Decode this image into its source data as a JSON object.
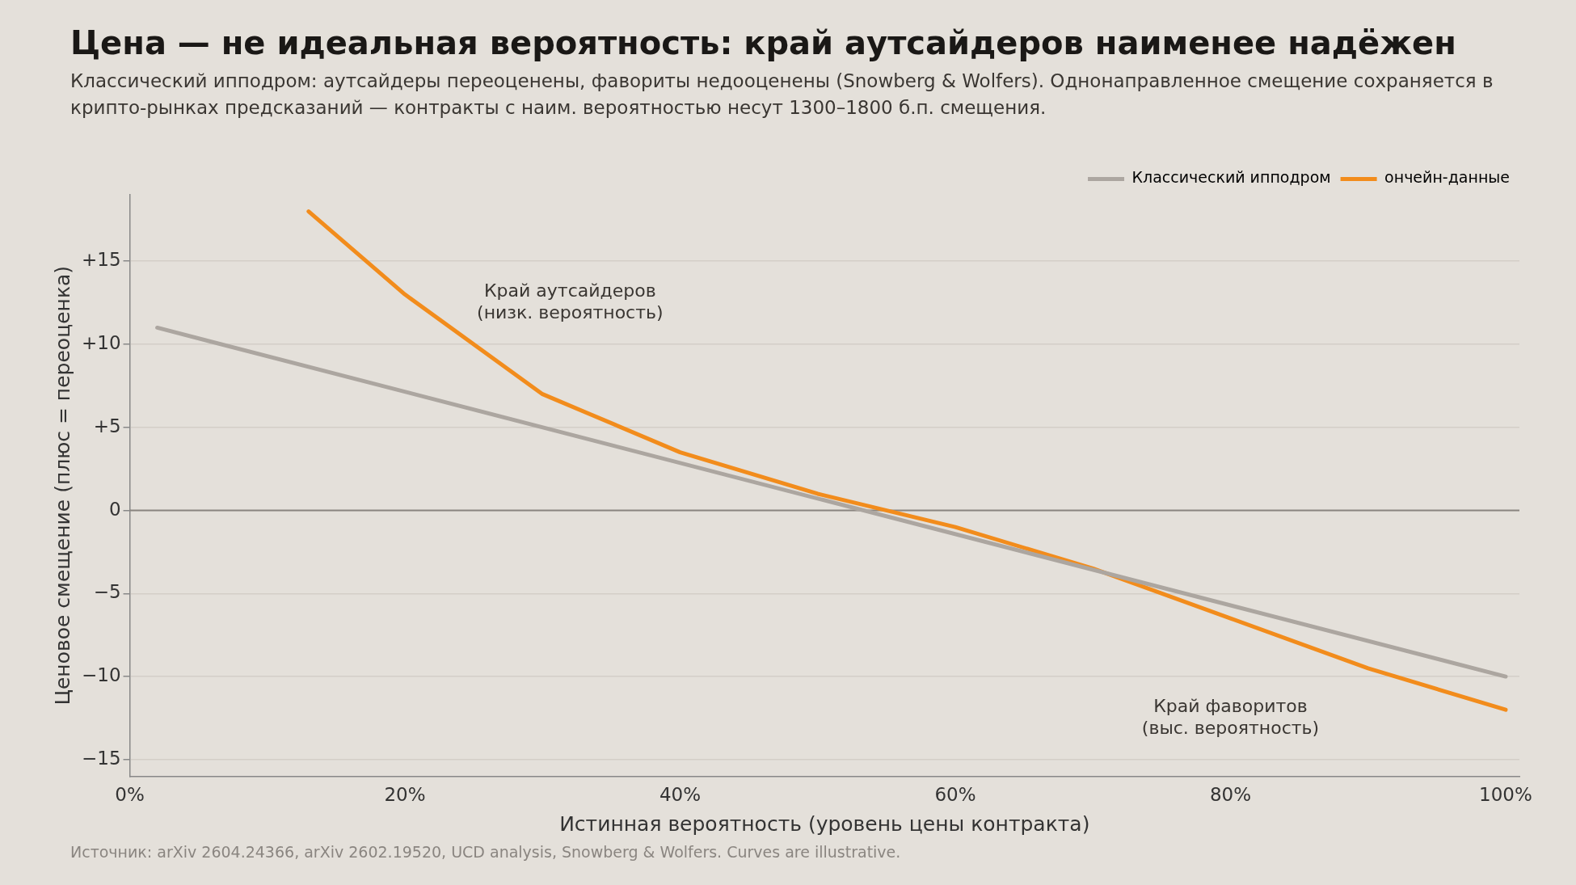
{
  "chart_data": {
    "type": "line",
    "title": "Цена — не идеальная вероятность: край аутсайдеров наименее надёжен",
    "subtitle": "Классический ипподром: аутсайдеры переоценены, фавориты недооценены (Snowberg & Wolfers). Однонаправленное смещение сохраняется в крипто-рынках предсказаний — контракты с наим. вероятностью несут 1300–1800 б.п. смещения.",
    "xlabel": "Истинная вероятность (уровень цены контракта)",
    "ylabel": "Ценовое смещение (плюс = переоценка)",
    "series": [
      {
        "name": "Классический ипподром",
        "color": "#aca6a0",
        "x": [
          2,
          100
        ],
        "values": [
          11,
          -10
        ]
      },
      {
        "name": "ончейн-данные",
        "color": "#f28c1c",
        "x": [
          13,
          20,
          30,
          40,
          50,
          60,
          70,
          80,
          90,
          100
        ],
        "values": [
          18,
          13,
          7,
          3.5,
          1,
          -1,
          -3.5,
          -6.5,
          -9.5,
          -12
        ]
      }
    ],
    "xlim": [
      0,
      101
    ],
    "xticks": [
      {
        "value": 0,
        "label": "0%"
      },
      {
        "value": 20,
        "label": "20%"
      },
      {
        "value": 40,
        "label": "40%"
      },
      {
        "value": 60,
        "label": "60%"
      },
      {
        "value": 80,
        "label": "80%"
      },
      {
        "value": 100,
        "label": "100%"
      }
    ],
    "ylim": [
      -16,
      19
    ],
    "yticks": [
      {
        "value": -15,
        "label": "−15"
      },
      {
        "value": -10,
        "label": "−10"
      },
      {
        "value": -5,
        "label": "−5"
      },
      0,
      {
        "value": 5,
        "label": "+5"
      },
      {
        "value": 10,
        "label": "+10"
      },
      {
        "value": 15,
        "label": "+15"
      }
    ],
    "ref_lines": [
      {
        "axis": "y",
        "value": 0,
        "color": "#8a8580"
      }
    ],
    "annotations": [
      "Край аутсайдеров\n(низк. вероятность)",
      "Край фаворитов\n(выс. вероятность)",
      "Источник: arXiv 2604.24366, arXiv 2602.19520, UCD analysis, Snowberg & Wolfers. Curves are illustrative."
    ],
    "grid": "y",
    "legend": "top right",
    "marker": "none",
    "line_style": "solid"
  }
}
